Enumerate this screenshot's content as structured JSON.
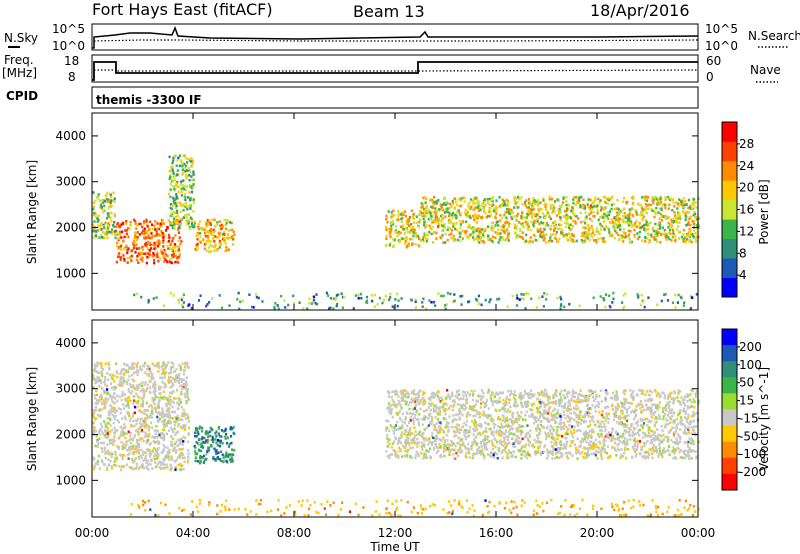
{
  "header": {
    "radar": "Fort Hays East (fitACF)",
    "beam": "Beam 13",
    "date": "18/Apr/2016"
  },
  "strips": {
    "nsky_label": "N.Sky",
    "nsky_ticks": [
      "10^5",
      "10^0"
    ],
    "nsearch_label": "N.Search",
    "nsearch_ticks": [
      "10^5",
      "10^0"
    ],
    "freq_label_1": "Freq.",
    "freq_label_2": "[MHz]",
    "freq_ticks": [
      "18",
      "8"
    ],
    "nave_label": "Nave",
    "nave_ticks": [
      "60",
      "0"
    ],
    "cpid_label": "CPID",
    "cpid_value": "themis -3300 IF"
  },
  "chart_data": [
    {
      "type": "heatmap",
      "panel": "power",
      "ylabel": "Slant Range [km]",
      "ylim": [
        200,
        4500
      ],
      "yticks": [
        "1000",
        "2000",
        "3000",
        "4000"
      ],
      "xlim_hours": [
        0,
        24
      ],
      "colorbar": {
        "label": "Power [dB]",
        "ticks": [
          "28",
          "24",
          "20",
          "16",
          "12",
          "8",
          "4"
        ],
        "colors": [
          "#0000ff",
          "#1e5ab4",
          "#2f8f7a",
          "#3cb44b",
          "#c8e632",
          "#ffc800",
          "#ff8c00",
          "#ff4000",
          "#ff0000"
        ]
      },
      "regions": [
        {
          "t": [
            0.0,
            0.9
          ],
          "r": [
            1800,
            2800
          ],
          "value": 16
        },
        {
          "t": [
            0.9,
            3.5
          ],
          "r": [
            1250,
            2200
          ],
          "value": 24
        },
        {
          "t": [
            3.0,
            4.0
          ],
          "r": [
            2000,
            3600
          ],
          "value": 14
        },
        {
          "t": [
            4.0,
            5.6
          ],
          "r": [
            1500,
            2200
          ],
          "value": 20
        },
        {
          "t": [
            11.6,
            13.0
          ],
          "r": [
            1600,
            2400
          ],
          "value": 18
        },
        {
          "t": [
            13.0,
            24.0
          ],
          "r": [
            1700,
            2700
          ],
          "value": 18
        },
        {
          "t": [
            1.5,
            24.0
          ],
          "r": [
            250,
            600
          ],
          "value": 10
        }
      ]
    },
    {
      "type": "heatmap",
      "panel": "velocity",
      "ylabel": "Slant Range [km]",
      "ylim": [
        200,
        4500
      ],
      "yticks": [
        "1000",
        "2000",
        "3000",
        "4000"
      ],
      "xlabel": "Time UT",
      "xticks": [
        "00:00",
        "04:00",
        "08:00",
        "12:00",
        "16:00",
        "20:00",
        "00:00"
      ],
      "xlim_hours": [
        0,
        24
      ],
      "colorbar": {
        "label": "Velocity [m s^-1]",
        "ticks": [
          "200",
          "100",
          "50",
          "15",
          "-15",
          "-50",
          "-100",
          "-200"
        ],
        "colors": [
          "#0000ff",
          "#1e5ab4",
          "#2f8f7a",
          "#3cb44b",
          "#99dd33",
          "#c8c8c8",
          "#ffc800",
          "#ff8c00",
          "#ff4000",
          "#ff0000"
        ]
      },
      "regions": [
        {
          "t": [
            0.0,
            3.8
          ],
          "r": [
            1250,
            3600
          ],
          "value": 0
        },
        {
          "t": [
            4.0,
            5.6
          ],
          "r": [
            1400,
            2200
          ],
          "value": 60
        },
        {
          "t": [
            11.6,
            24.0
          ],
          "r": [
            1500,
            3000
          ],
          "value": 0
        },
        {
          "t": [
            1.5,
            24.0
          ],
          "r": [
            250,
            600
          ],
          "value": -40
        }
      ]
    }
  ]
}
